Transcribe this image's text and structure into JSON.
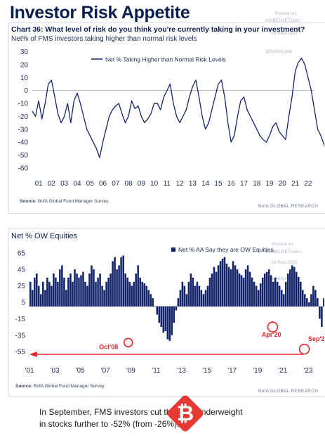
{
  "page": {
    "title": "Investor Risk Appetite"
  },
  "chart1": {
    "title": "Chart 36: What level of risk do you think you're currently taking in your investment?",
    "subtitle": "Net% of FMS investors taking higher than normal risk levels",
    "source_label": "Source:",
    "source_text": "BofA Global Fund Manager Survey",
    "brand": "BofA GLOBAL RESEARCH",
    "watermark": [
      "Posted on",
      "ISABELNET.com",
      "15-Sep-2022",
      "@SoberLook"
    ]
  },
  "chart2": {
    "title": "Net % OW Equities",
    "source_label": "Source:",
    "source_text": "BofA Global Fund Manager Survey",
    "brand": "BofA GLOBAL RESEARCH",
    "watermark": [
      "Posted on",
      "ISABELNET.com",
      "15-Sep-2022",
      "@SoberLook"
    ],
    "annotations": {
      "oct08": "Oct'08",
      "apr20": "Apr'20",
      "sep22": "Sep'22"
    }
  },
  "caption": "In September, FMS investors cut their net underweight in stocks further to -52% (from -26%)...",
  "colors": {
    "navy": "#14246b",
    "red": "#e0262b",
    "title": "#0b1f4e"
  },
  "icons": {
    "bitcoin": "bitcoin-icon"
  },
  "chart_data": [
    {
      "type": "line",
      "series": [
        {
          "name": "Net % Taking Higher than Normal Risk Levels",
          "x_start": 2001.0,
          "x_step": 0.25,
          "values": [
            -16,
            -20,
            -8,
            -22,
            -10,
            5,
            8,
            -5,
            -18,
            -25,
            -20,
            -10,
            -25,
            -8,
            -2,
            -10,
            -20,
            -30,
            -35,
            -40,
            -45,
            -52,
            -40,
            -30,
            -20,
            -15,
            -12,
            -10,
            -18,
            -25,
            -20,
            -8,
            -14,
            -12,
            -20,
            -25,
            -22,
            -18,
            -10,
            -10,
            -15,
            -5,
            0,
            5,
            -10,
            -20,
            -25,
            -20,
            -15,
            -5,
            3,
            8,
            -5,
            -20,
            -30,
            -25,
            -15,
            -5,
            5,
            8,
            -5,
            -25,
            -40,
            -35,
            -20,
            -8,
            -5,
            -15,
            -20,
            -25,
            -30,
            -35,
            -38,
            -40,
            -35,
            -28,
            -25,
            -32,
            -35,
            -38,
            -20,
            -5,
            15,
            22,
            25,
            20,
            10,
            0,
            -15,
            -30,
            -35,
            -42,
            -52,
            -58
          ]
        }
      ],
      "x_ticks": [
        "01",
        "02",
        "03",
        "04",
        "05",
        "06",
        "07",
        "08",
        "09",
        "10",
        "11",
        "12",
        "13",
        "14",
        "15",
        "16",
        "17",
        "18",
        "19",
        "20",
        "21",
        "22"
      ],
      "y_ticks": [
        30,
        20,
        10,
        0,
        -10,
        -20,
        -30,
        -40,
        -50,
        -60
      ],
      "xlim": [
        2001,
        2023
      ],
      "ylim": [
        -65,
        32
      ],
      "legend": "top-center",
      "grid": false
    },
    {
      "type": "bar",
      "title": "Net % OW Equities",
      "series": [
        {
          "name": "Net % AA Say they are OW Equities",
          "x_start": 2001.0,
          "x_step": 0.1667,
          "values": [
            30,
            20,
            35,
            40,
            25,
            15,
            30,
            20,
            35,
            30,
            25,
            40,
            35,
            30,
            45,
            50,
            35,
            20,
            35,
            40,
            30,
            45,
            40,
            35,
            38,
            42,
            30,
            25,
            40,
            50,
            45,
            30,
            35,
            40,
            25,
            20,
            30,
            35,
            40,
            55,
            60,
            45,
            50,
            60,
            62,
            40,
            35,
            30,
            25,
            30,
            40,
            50,
            35,
            30,
            28,
            25,
            20,
            15,
            10,
            0,
            -10,
            -20,
            -25,
            -32,
            -30,
            -40,
            -42,
            -35,
            -20,
            -5,
            10,
            20,
            30,
            25,
            15,
            30,
            40,
            35,
            25,
            30,
            25,
            20,
            15,
            20,
            25,
            35,
            40,
            48,
            42,
            50,
            55,
            58,
            60,
            52,
            48,
            45,
            55,
            50,
            45,
            40,
            38,
            35,
            45,
            50,
            42,
            35,
            30,
            25,
            20,
            28,
            35,
            40,
            42,
            45,
            38,
            30,
            35,
            30,
            25,
            20,
            15,
            30,
            40,
            45,
            50,
            48,
            42,
            36,
            30,
            20,
            15,
            10,
            5,
            15,
            25,
            20,
            10,
            -15,
            -25,
            10,
            25,
            35,
            45,
            55,
            62,
            58,
            50,
            55,
            60,
            52,
            45,
            35,
            25,
            10,
            -5,
            -20,
            -30,
            -52
          ]
        }
      ],
      "x_ticks": [
        "'01",
        "'05",
        "'09",
        "'13",
        "'17",
        "'21",
        "'03",
        "'07",
        "'11",
        "'15",
        "'19",
        "'23"
      ],
      "y_ticks": [
        65,
        45,
        25,
        5,
        -15,
        -35,
        -55
      ],
      "xlim": [
        2001,
        2023.5
      ],
      "ylim": [
        -60,
        70
      ],
      "legend": "top-right",
      "grid": false
    }
  ]
}
